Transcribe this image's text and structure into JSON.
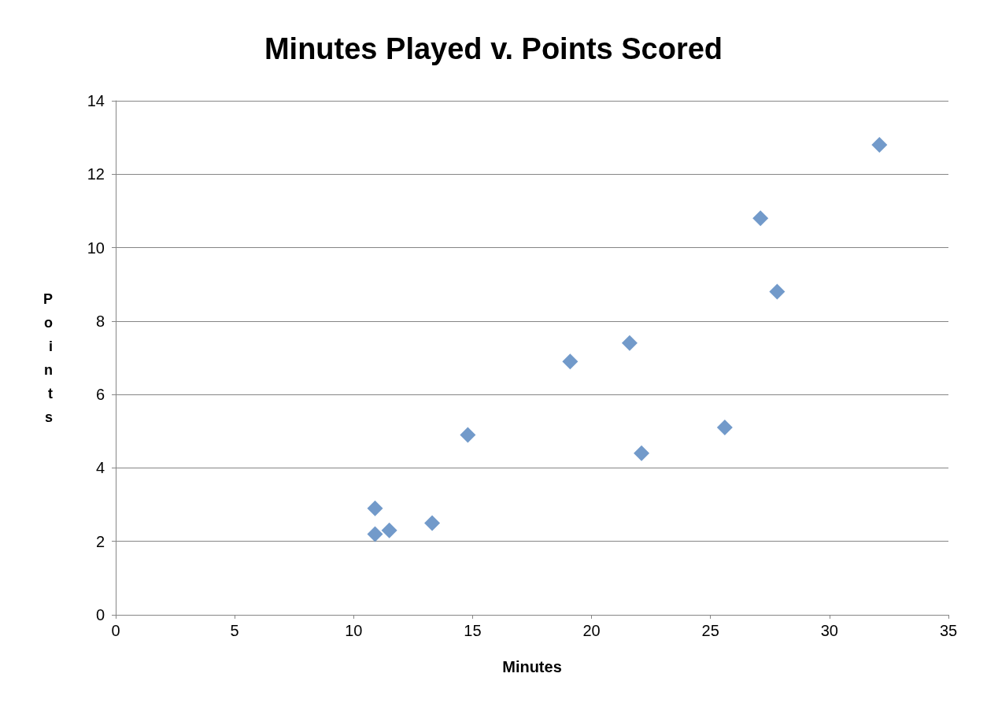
{
  "chart_data": {
    "type": "scatter",
    "title": "Minutes Played v. Points Scored",
    "xlabel": "Minutes",
    "ylabel": "Points",
    "x": [
      10.9,
      10.9,
      11.5,
      13.3,
      14.8,
      19.1,
      21.6,
      22.1,
      25.6,
      27.1,
      27.8,
      32.1
    ],
    "values": [
      2.9,
      2.2,
      2.3,
      2.5,
      4.9,
      6.9,
      7.4,
      4.4,
      5.1,
      10.8,
      8.8,
      12.8
    ],
    "color": "#4f81bd",
    "marker": "diamond",
    "grid": "y",
    "xlim": [
      0,
      35
    ],
    "xticks": [
      0,
      5,
      10,
      15,
      20,
      25,
      30,
      35
    ],
    "ylim": [
      0,
      14
    ],
    "yticks": [
      0,
      2,
      4,
      6,
      8,
      10,
      12,
      14
    ]
  }
}
